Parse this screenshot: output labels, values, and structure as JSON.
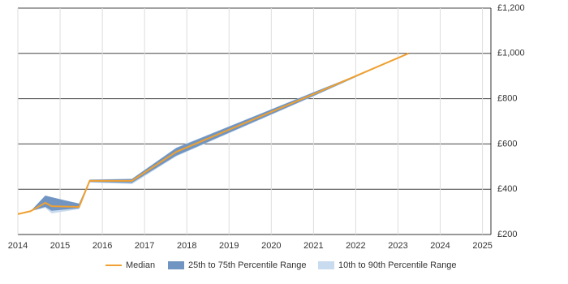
{
  "chart_data": {
    "type": "line",
    "x": [
      2014,
      2014.3,
      2014.65,
      2014.8,
      2015.45,
      2015.7,
      2016.7,
      2017.75,
      2021,
      2022,
      2023.25
    ],
    "series": [
      {
        "name": "Median",
        "color": "#f0a030",
        "values": [
          290,
          303,
          340,
          325,
          322,
          437,
          437,
          565,
          820,
          900,
          1000
        ]
      },
      {
        "name": "25th to 75th Percentile Range",
        "color": "#7095c2",
        "lower": [
          290,
          303,
          322,
          305,
          316,
          432,
          428,
          548,
          812,
          896,
          1000
        ],
        "upper": [
          290,
          303,
          372,
          365,
          336,
          442,
          445,
          582,
          828,
          902,
          1000
        ]
      },
      {
        "name": "10th to 90th Percentile Range",
        "color": "#c9dbee",
        "lower": [
          290,
          303,
          318,
          293,
          312,
          430,
          422,
          545,
          810,
          895,
          1000
        ],
        "upper": [
          290,
          303,
          372,
          362,
          338,
          443,
          447,
          584,
          829,
          903,
          1000
        ]
      }
    ],
    "xlim": [
      2014,
      2025.2
    ],
    "xticks": [
      2014,
      2015,
      2016,
      2017,
      2018,
      2019,
      2020,
      2021,
      2022,
      2023,
      2024,
      2025
    ],
    "ylim": [
      200,
      1200
    ],
    "yticks": [
      {
        "value": 200,
        "label": "£200"
      },
      {
        "value": 400,
        "label": "£400"
      },
      {
        "value": 600,
        "label": "£600"
      },
      {
        "value": 800,
        "label": "£800"
      },
      {
        "value": 1000,
        "label": "£1,000"
      },
      {
        "value": 1200,
        "label": "£1,200"
      }
    ],
    "grid": true
  }
}
